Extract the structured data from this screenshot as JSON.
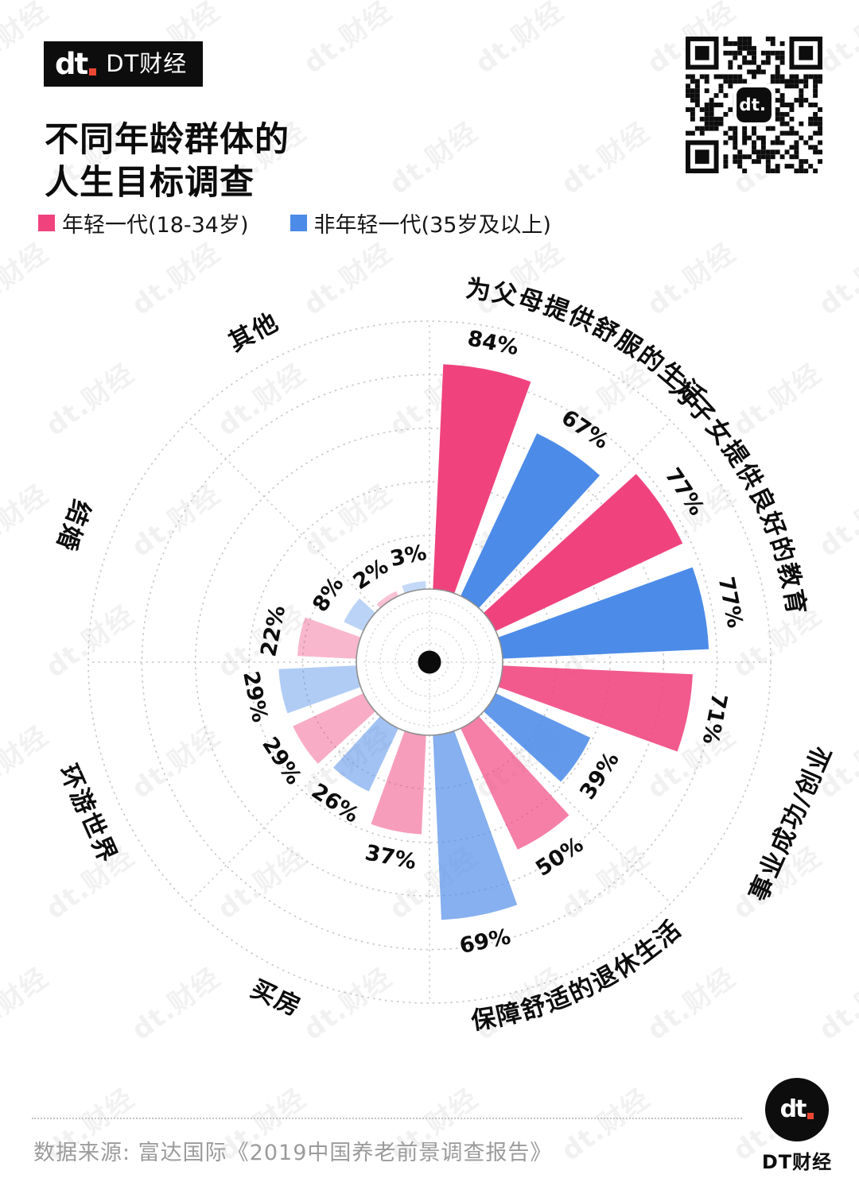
{
  "header": {
    "logo_text": "dt",
    "logo_brand": "DT财经",
    "title_line1": "不同年龄群体的",
    "title_line2": "人生目标调查"
  },
  "legend": [
    {
      "label": "年轻一代(18-34岁)",
      "color": "#f0437e"
    },
    {
      "label": "非年轻一代(35岁及以上)",
      "color": "#4c8be8"
    }
  ],
  "chart_data": {
    "type": "polar_bar",
    "title": "不同年龄群体的人生目标调查",
    "unit": "%",
    "rlim": [
      0,
      100
    ],
    "ring_step": 20,
    "grid": "dotted-circles-and-spokes",
    "legend_position": "top-left",
    "categories": [
      "为父母提供舒服的生活",
      "为子女提供良好的教育",
      "事业成功/创业",
      "保障舒适的退休生活",
      "买房",
      "环游世界",
      "结婚",
      "其他"
    ],
    "series": [
      {
        "name": "年轻一代(18-34岁)",
        "color": "#f0437e",
        "values": [
          84,
          77,
          71,
          50,
          37,
          29,
          22,
          2
        ]
      },
      {
        "name": "非年轻一代(35岁及以上)",
        "color": "#4c8be8",
        "values": [
          67,
          77,
          39,
          69,
          26,
          29,
          8,
          3
        ]
      }
    ],
    "category_opacity": [
      1,
      1,
      0.88,
      0.68,
      0.52,
      0.44,
      0.38,
      0.33
    ]
  },
  "footer": {
    "source": "数据来源: 富达国际《2019中国养老前景调查报告》",
    "logo_text": "dt",
    "logo_brand": "DT财经"
  }
}
